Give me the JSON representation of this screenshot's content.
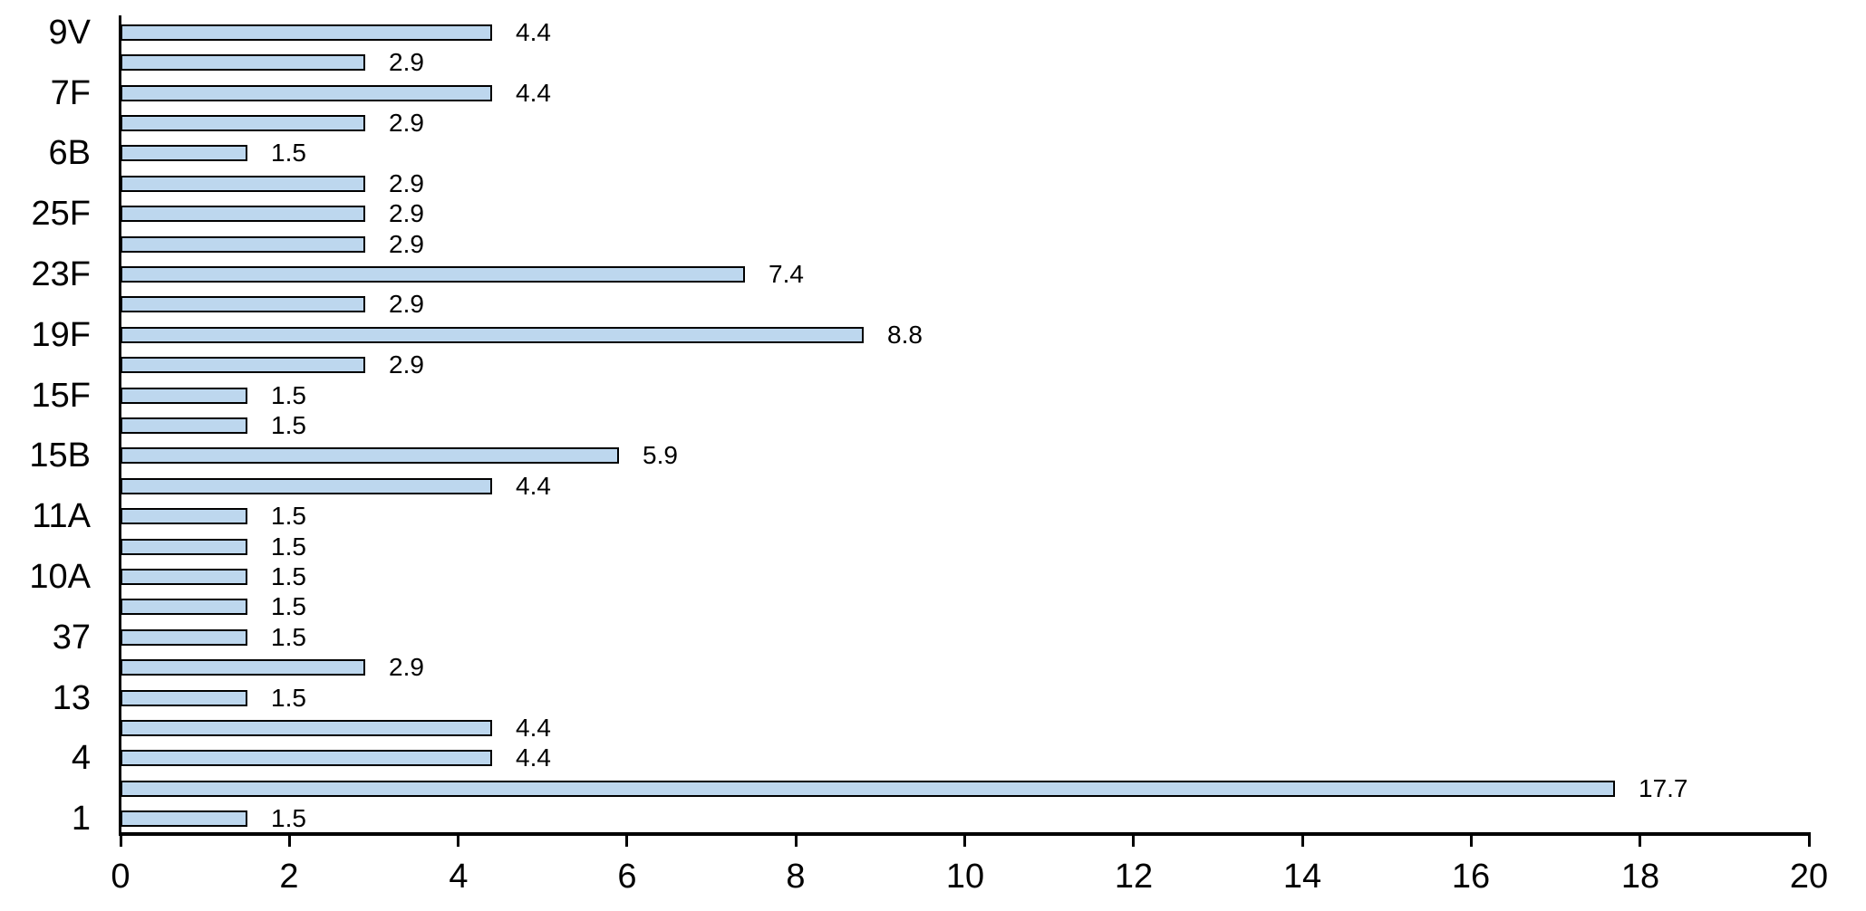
{
  "chart_data": {
    "type": "bar",
    "orientation": "horizontal",
    "title": "",
    "xlabel": "",
    "ylabel": "",
    "xlim": [
      0,
      20
    ],
    "x_ticks": [
      0,
      2,
      4,
      6,
      8,
      10,
      12,
      14,
      16,
      18,
      20
    ],
    "grid": false,
    "legend": false,
    "bar_fill": "#BDD7EE",
    "bar_border": "#000000",
    "axis_color": "#000000",
    "text_color": "#000000",
    "category_label_interval": 2,
    "category_tick_labels": [
      "9V",
      "7F",
      "6B",
      "25F",
      "23F",
      "19F",
      "15F",
      "15B",
      "11A",
      "10A",
      "37",
      "13",
      "4",
      "1"
    ],
    "values": [
      4.4,
      2.9,
      4.4,
      2.9,
      1.5,
      2.9,
      2.9,
      2.9,
      7.4,
      2.9,
      8.8,
      2.9,
      1.5,
      1.5,
      5.9,
      4.4,
      1.5,
      1.5,
      1.5,
      1.5,
      1.5,
      2.9,
      1.5,
      4.4,
      4.4,
      17.7,
      1.5
    ],
    "data_labels": [
      "4.4",
      "2.9",
      "4.4",
      "2.9",
      "1.5",
      "2.9",
      "2.9",
      "2.9",
      "7.4",
      "2.9",
      "8.8",
      "2.9",
      "1.5",
      "1.5",
      "5.9",
      "4.4",
      "1.5",
      "1.5",
      "1.5",
      "1.5",
      "1.5",
      "2.9",
      "1.5",
      "4.4",
      "4.4",
      "17.7",
      "1.5"
    ],
    "data_label_position": "outside-end"
  }
}
